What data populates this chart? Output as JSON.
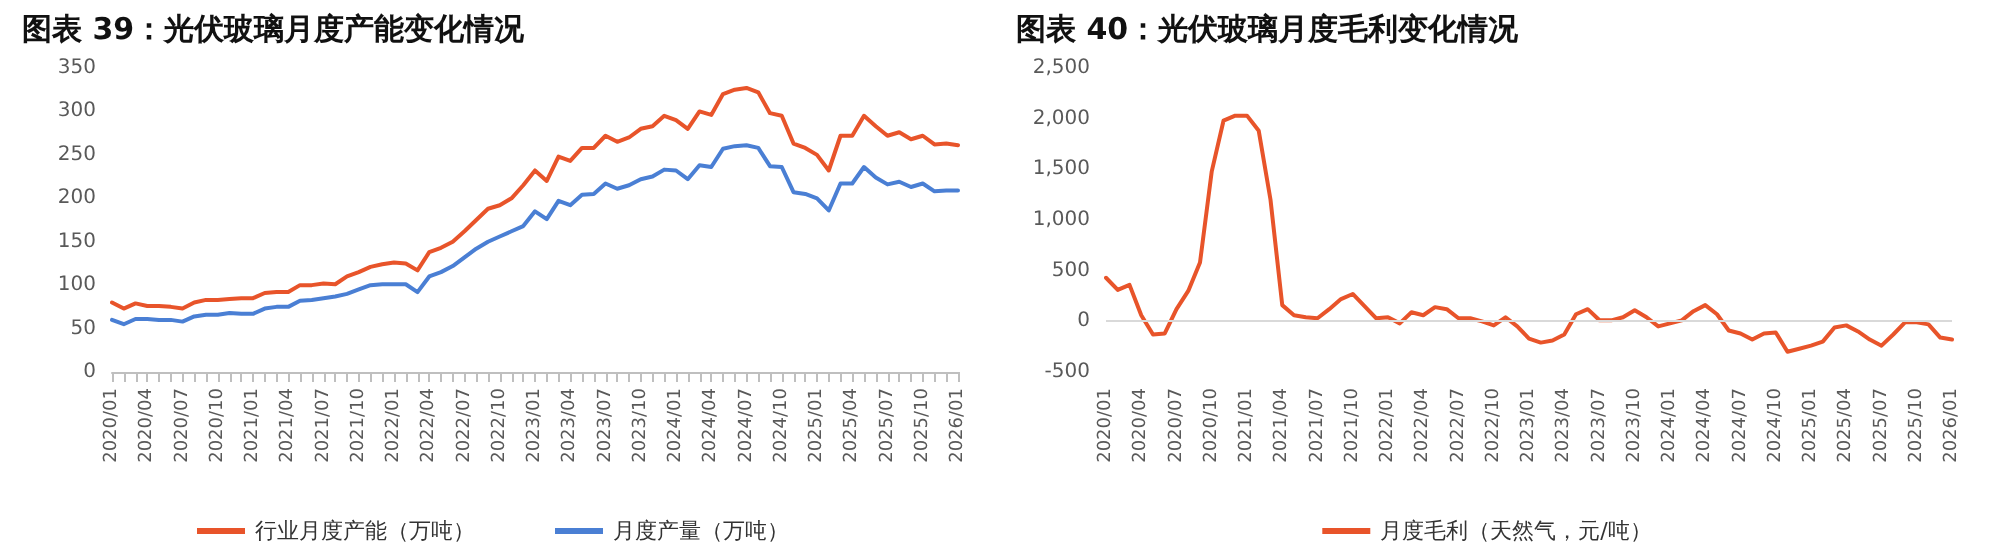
{
  "chart_data": [
    {
      "type": "line",
      "title": "图表 39：光伏玻璃月度产能变化情况",
      "categories": [
        "2020/01",
        null,
        null,
        "2020/04",
        null,
        null,
        "2020/07",
        null,
        null,
        "2020/10",
        null,
        null,
        "2021/01",
        null,
        null,
        "2021/04",
        null,
        null,
        "2021/07",
        null,
        null,
        "2021/10",
        null,
        null,
        "2022/01",
        null,
        null,
        "2022/04",
        null,
        null,
        "2022/07",
        null,
        null,
        "2022/10",
        null,
        null,
        "2023/01",
        null,
        null,
        "2023/04",
        null,
        null,
        "2023/07",
        null,
        null,
        "2023/10",
        null,
        null,
        "2024/01",
        null,
        null,
        "2024/04",
        null,
        null,
        "2024/07",
        null,
        null,
        "2024/10",
        null,
        null,
        "2025/01",
        null,
        null,
        "2025/04",
        null,
        null,
        "2025/07",
        null,
        null,
        "2025/10",
        null,
        null,
        "2026/01"
      ],
      "series": [
        {
          "name": "行业月度产能（万吨）",
          "color": "#e8542a",
          "values": [
            80,
            73,
            79,
            76,
            76,
            75,
            73,
            80,
            83,
            83,
            84,
            85,
            85,
            91,
            92,
            92,
            100,
            100,
            102,
            101,
            110,
            115,
            121,
            124,
            126,
            125,
            117,
            138,
            143,
            150,
            162,
            175,
            188,
            192,
            200,
            215,
            232,
            220,
            248,
            243,
            258,
            258,
            272,
            265,
            270,
            280,
            283,
            295,
            290,
            280,
            300,
            296,
            320,
            325,
            327,
            322,
            298,
            295,
            263,
            258,
            250,
            232,
            272,
            272,
            295,
            283,
            272,
            276,
            268,
            272,
            262,
            263,
            261
          ]
        },
        {
          "name": "月度产量（万吨）",
          "color": "#4a7fd4",
          "values": [
            60,
            55,
            61,
            61,
            60,
            60,
            58,
            64,
            66,
            66,
            68,
            67,
            67,
            73,
            75,
            75,
            82,
            83,
            85,
            87,
            90,
            95,
            100,
            101,
            101,
            101,
            92,
            110,
            115,
            122,
            132,
            142,
            150,
            156,
            162,
            168,
            185,
            176,
            197,
            192,
            204,
            205,
            217,
            211,
            215,
            222,
            225,
            233,
            232,
            222,
            238,
            236,
            257,
            260,
            261,
            258,
            237,
            236,
            207,
            205,
            200,
            186,
            217,
            217,
            236,
            224,
            216,
            219,
            213,
            217,
            208,
            209,
            209
          ]
        }
      ],
      "ylim": [
        0,
        350
      ],
      "yticks": [
        0,
        50,
        100,
        150,
        200,
        250,
        300,
        350
      ],
      "grid": false,
      "legend": "bottom",
      "marker": "none",
      "line_style": "solid"
    },
    {
      "type": "line",
      "title": "图表 40：光伏玻璃月度毛利变化情况",
      "categories": [
        "2020/01",
        null,
        null,
        "2020/04",
        null,
        null,
        "2020/07",
        null,
        null,
        "2020/10",
        null,
        null,
        "2021/01",
        null,
        null,
        "2021/04",
        null,
        null,
        "2021/07",
        null,
        null,
        "2021/10",
        null,
        null,
        "2022/01",
        null,
        null,
        "2022/04",
        null,
        null,
        "2022/07",
        null,
        null,
        "2022/10",
        null,
        null,
        "2023/01",
        null,
        null,
        "2023/04",
        null,
        null,
        "2023/07",
        null,
        null,
        "2023/10",
        null,
        null,
        "2024/01",
        null,
        null,
        "2024/04",
        null,
        null,
        "2024/07",
        null,
        null,
        "2024/10",
        null,
        null,
        "2025/01",
        null,
        null,
        "2025/04",
        null,
        null,
        "2025/07",
        null,
        null,
        "2025/10",
        null,
        null,
        "2026/01"
      ],
      "series": [
        {
          "name": "月度毛利（天然气，元/吨）",
          "color": "#e8542a",
          "values": [
            430,
            310,
            360,
            60,
            -130,
            -120,
            120,
            300,
            580,
            1480,
            1980,
            2030,
            2030,
            1880,
            1200,
            160,
            60,
            40,
            30,
            120,
            220,
            270,
            150,
            30,
            40,
            -20,
            90,
            60,
            140,
            120,
            30,
            30,
            0,
            -40,
            40,
            -50,
            -170,
            -210,
            -190,
            -130,
            70,
            120,
            10,
            10,
            40,
            110,
            40,
            -50,
            -20,
            10,
            100,
            160,
            70,
            -90,
            -120,
            -180,
            -120,
            -110,
            -300,
            -270,
            -240,
            -200,
            -60,
            -40,
            -100,
            -180,
            -240,
            -130,
            -10,
            -10,
            -30,
            -160,
            -180
          ]
        }
      ],
      "ylim": [
        -500,
        2500
      ],
      "yticks": [
        {
          "value": -500,
          "label": "-500"
        },
        {
          "value": 0,
          "label": "0"
        },
        {
          "value": 500,
          "label": "500"
        },
        {
          "value": 1000,
          "label": "1,000"
        },
        {
          "value": 1500,
          "label": "1,500"
        },
        {
          "value": 2000,
          "label": "2,000"
        },
        {
          "value": 2500,
          "label": "2,500"
        }
      ],
      "ref_lines": [
        {
          "axis": "y",
          "value": 0,
          "color": "#d9d9d9",
          "line_style": "solid"
        }
      ],
      "grid": false,
      "legend": "bottom",
      "marker": "none",
      "line_style": "solid"
    }
  ]
}
